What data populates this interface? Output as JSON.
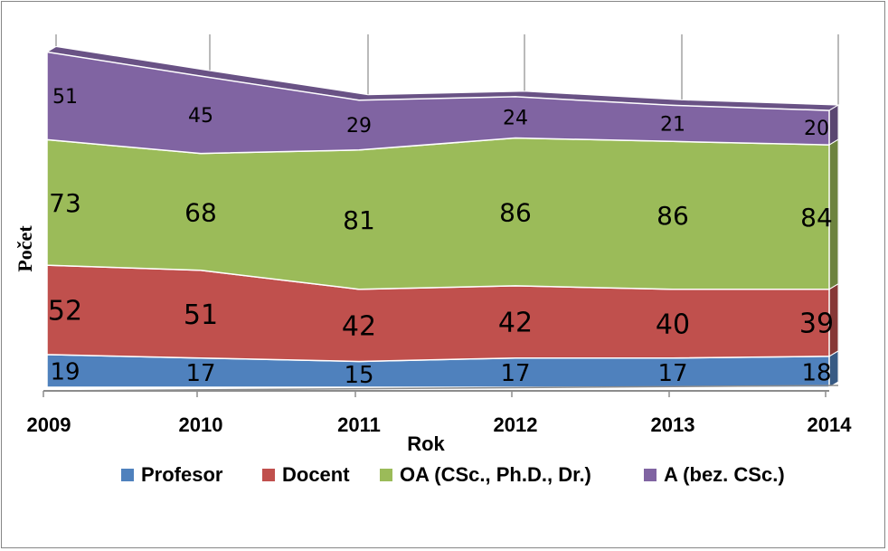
{
  "chart_data": {
    "type": "area",
    "stacked": true,
    "three_d": true,
    "categories": [
      "2009",
      "2010",
      "2011",
      "2012",
      "2013",
      "2014"
    ],
    "series": [
      {
        "name": "Profesor",
        "color": "#4f81bd",
        "values": [
          19,
          17,
          15,
          17,
          17,
          18
        ]
      },
      {
        "name": "Docent",
        "color": "#c0504d",
        "values": [
          52,
          51,
          42,
          42,
          40,
          39
        ]
      },
      {
        "name": "OA (CSc., Ph.D., Dr.)",
        "color": "#9bbb59",
        "values": [
          73,
          68,
          81,
          86,
          86,
          84
        ]
      },
      {
        "name": "A (bez. CSc.)",
        "color": "#8064a2",
        "values": [
          51,
          45,
          29,
          24,
          21,
          20
        ]
      }
    ],
    "xlabel": "Rok",
    "ylabel": "Počet",
    "legend_position": "bottom",
    "data_labels": true,
    "gridlines": "vertical"
  }
}
